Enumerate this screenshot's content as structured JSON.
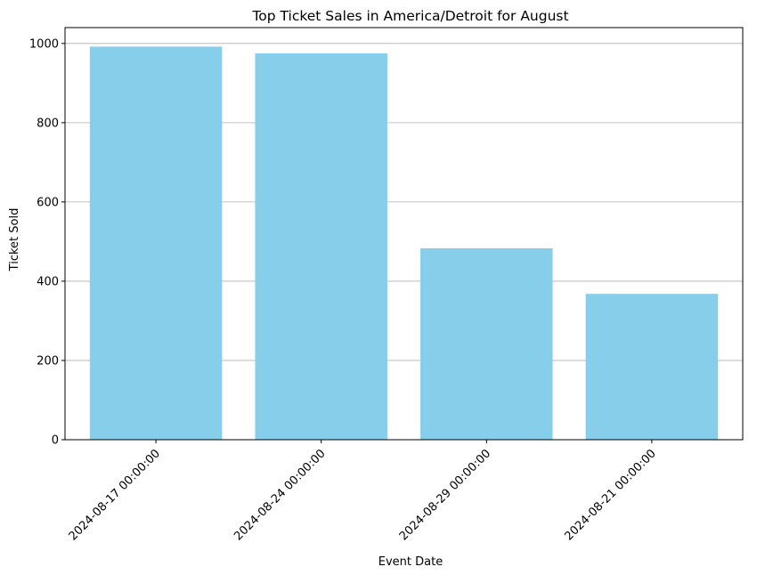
{
  "chart_data": {
    "type": "bar",
    "title": "Top Ticket Sales in America/Detroit for August",
    "xlabel": "Event Date",
    "ylabel": "Ticket Sold",
    "categories": [
      "2024-08-17 00:00:00",
      "2024-08-24 00:00:00",
      "2024-08-29 00:00:00",
      "2024-08-21 00:00:00"
    ],
    "values": [
      992,
      975,
      483,
      368
    ],
    "ylim": [
      0,
      1040
    ],
    "yticks": [
      0,
      200,
      400,
      600,
      800,
      1000
    ],
    "grid": "y",
    "bar_color": "#87ceeb"
  }
}
